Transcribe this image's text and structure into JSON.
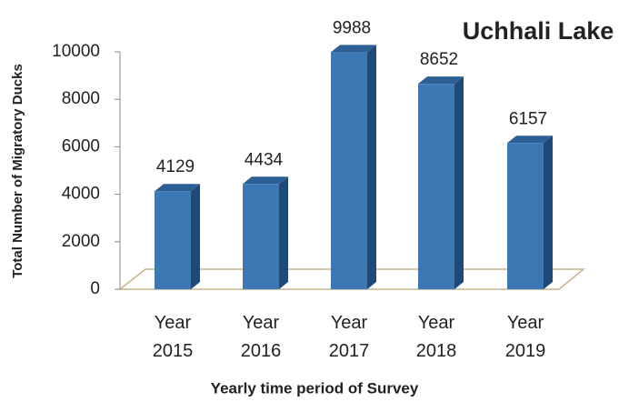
{
  "chart_data": {
    "type": "bar",
    "title": "Uchhali Lake",
    "xlabel": "Yearly time period of Survey",
    "ylabel": "Total Number of Migratory Ducks",
    "categories": [
      "Year 2015",
      "Year 2016",
      "Year 2017",
      "Year 2018",
      "Year 2019"
    ],
    "values": [
      4129,
      4434,
      9988,
      8652,
      6157
    ],
    "color": "#3b78b4",
    "ylim": [
      0,
      10000
    ],
    "yticks": [
      0,
      2000,
      4000,
      6000,
      8000,
      10000
    ],
    "grid": false
  }
}
